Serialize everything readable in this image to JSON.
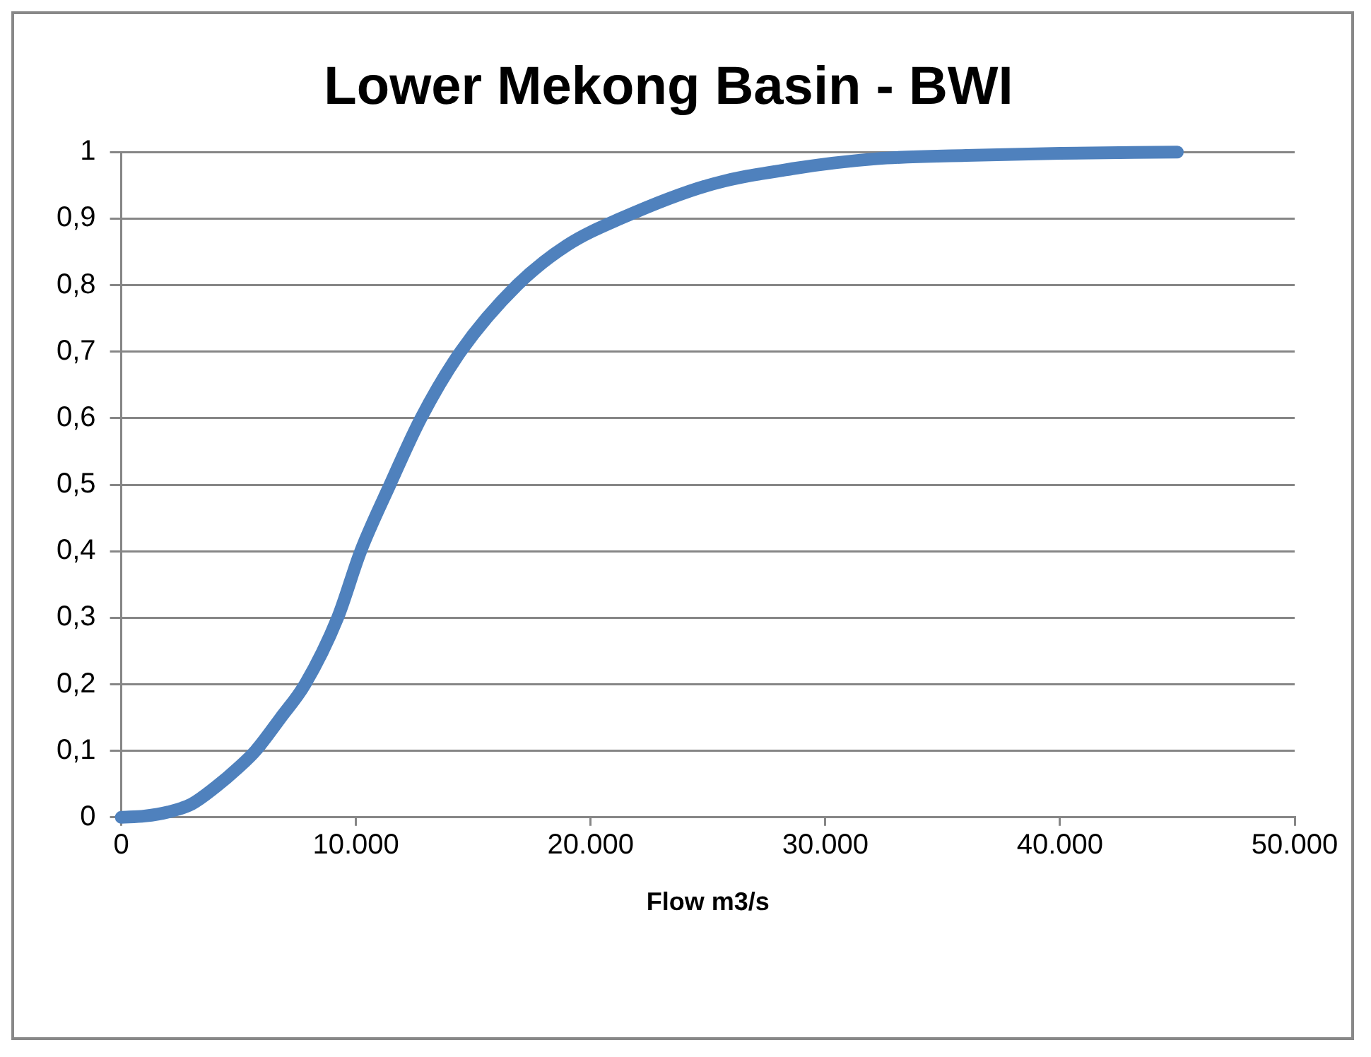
{
  "chart_data": {
    "type": "line",
    "title": "Lower Mekong Basin - BWI",
    "xlabel": "Flow m3/s",
    "series": [
      {
        "color": "#4f81bd",
        "x": [
          0,
          1000,
          2000,
          3000,
          4000,
          5000,
          5720,
          6800,
          7830,
          9220,
          10200,
          11450,
          12770,
          14460,
          16870,
          19000,
          21270,
          25000,
          28600,
          32200,
          36000,
          40000,
          45000
        ],
        "values": [
          0,
          0.002,
          0.008,
          0.02,
          0.045,
          0.075,
          0.1,
          0.15,
          0.2,
          0.3,
          0.4,
          0.5,
          0.6,
          0.7,
          0.8,
          0.86,
          0.9,
          0.95,
          0.975,
          0.99,
          0.995,
          0.998,
          1
        ]
      }
    ],
    "xlim": [
      0,
      50000
    ],
    "xticks": [
      0,
      {
        "value": 10000,
        "label": "10.000"
      },
      {
        "value": 20000,
        "label": "20.000"
      },
      {
        "value": 30000,
        "label": "30.000"
      },
      {
        "value": 40000,
        "label": "40.000"
      },
      {
        "value": 50000,
        "label": "50.000"
      }
    ],
    "ylim": [
      0,
      1
    ],
    "yticks": [
      0,
      {
        "value": 0.1,
        "label": "0,1"
      },
      {
        "value": 0.2,
        "label": "0,2"
      },
      {
        "value": 0.3,
        "label": "0,3"
      },
      {
        "value": 0.4,
        "label": "0,4"
      },
      {
        "value": 0.5,
        "label": "0,5"
      },
      {
        "value": 0.6,
        "label": "0,6"
      },
      {
        "value": 0.7,
        "label": "0,7"
      },
      {
        "value": 0.8,
        "label": "0,8"
      },
      {
        "value": 0.9,
        "label": "0,9"
      },
      1
    ],
    "grid": "y",
    "legend": false,
    "marker": "none",
    "line_style": "solid"
  }
}
